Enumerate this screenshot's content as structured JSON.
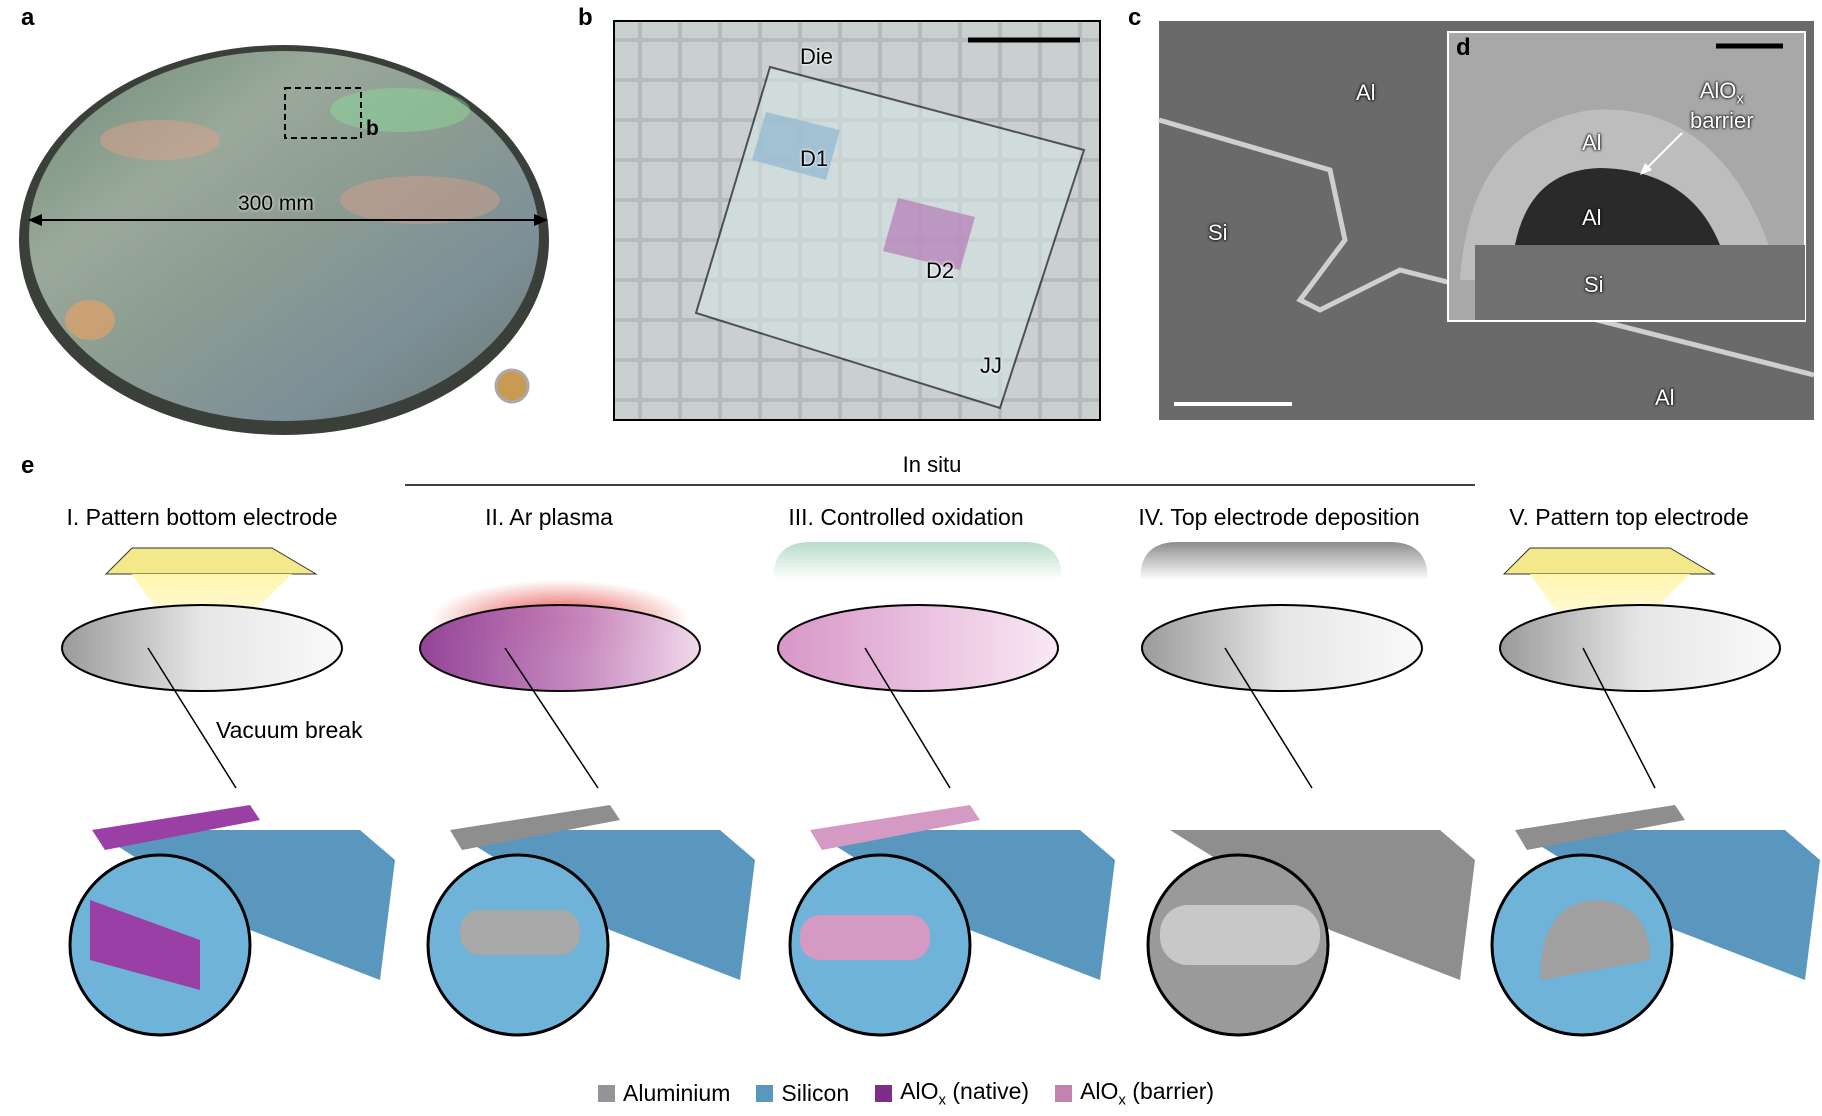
{
  "panels": {
    "a": {
      "label": "a",
      "scale": "300 mm",
      "inset_ref": "b"
    },
    "b": {
      "label": "b",
      "die": "Die",
      "d1": "D1",
      "d2": "D2",
      "jj": "JJ"
    },
    "c": {
      "label": "c",
      "al_top": "Al",
      "si": "Si",
      "al_bottom": "Al"
    },
    "d": {
      "label": "d",
      "al_top": "Al",
      "al_mid": "Al",
      "si": "Si",
      "barrier_1": "AlO",
      "barrier_sub": "x",
      "barrier_2": "barrier"
    },
    "e": {
      "label": "e",
      "in_situ": "In situ",
      "vacuum_break": "Vacuum break",
      "steps": [
        {
          "title": "I. Pattern bottom electrode"
        },
        {
          "title": "II. Ar plasma"
        },
        {
          "title": "III. Controlled oxidation"
        },
        {
          "title": "IV. Top electrode deposition"
        },
        {
          "title": "V. Pattern top electrode"
        }
      ]
    }
  },
  "legend": [
    {
      "label": "Aluminium",
      "sub": "",
      "suffix": "",
      "color": "#939398"
    },
    {
      "label": "Silicon",
      "sub": "",
      "suffix": "",
      "color": "#5a97bf"
    },
    {
      "label": "AlO",
      "sub": "x",
      "suffix": " (native)",
      "color": "#7d2e87"
    },
    {
      "label": "AlO",
      "sub": "x",
      "suffix": " (barrier)",
      "color": "#c383b0"
    }
  ]
}
